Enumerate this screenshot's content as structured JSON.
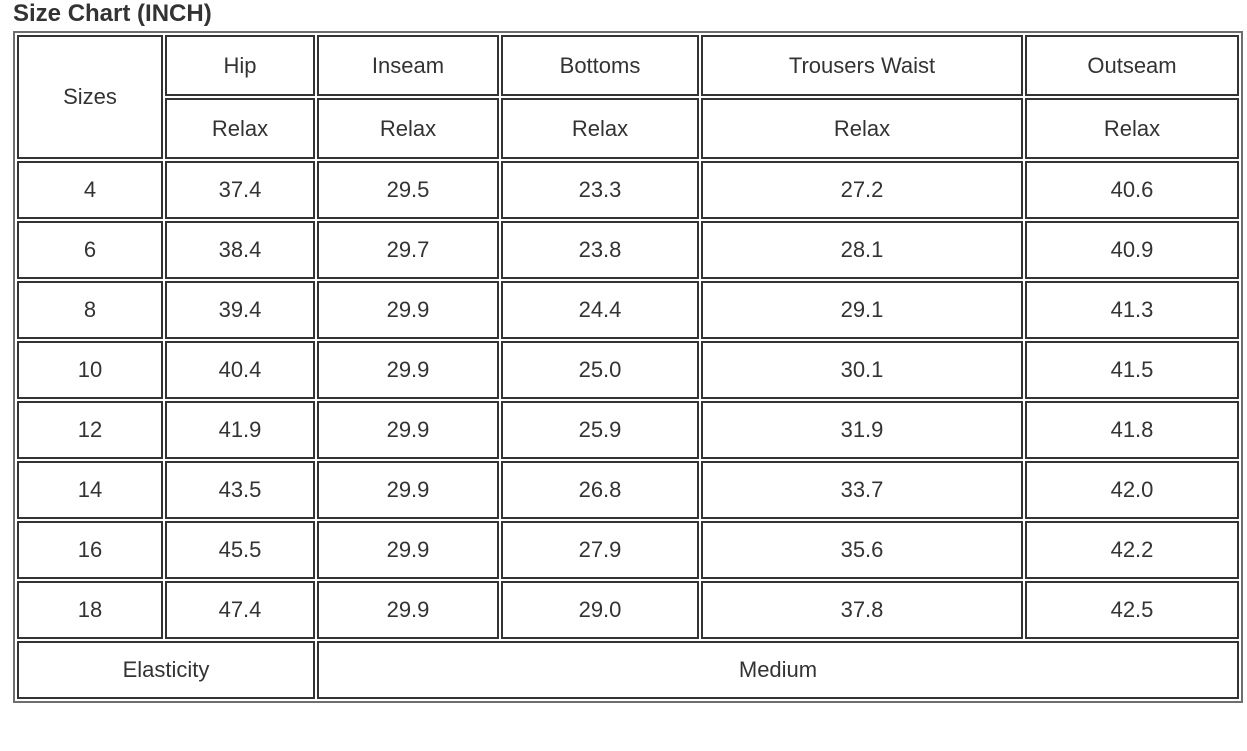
{
  "title": "Size Chart (INCH)",
  "table": {
    "sizes_label": "Sizes",
    "columns": [
      "Hip",
      "Inseam",
      "Bottoms",
      "Trousers Waist",
      "Outseam"
    ],
    "sub_label": "Relax",
    "rows": [
      {
        "size": "4",
        "values": [
          "37.4",
          "29.5",
          "23.3",
          "27.2",
          "40.6"
        ]
      },
      {
        "size": "6",
        "values": [
          "38.4",
          "29.7",
          "23.8",
          "28.1",
          "40.9"
        ]
      },
      {
        "size": "8",
        "values": [
          "39.4",
          "29.9",
          "24.4",
          "29.1",
          "41.3"
        ]
      },
      {
        "size": "10",
        "values": [
          "40.4",
          "29.9",
          "25.0",
          "30.1",
          "41.5"
        ]
      },
      {
        "size": "12",
        "values": [
          "41.9",
          "29.9",
          "25.9",
          "31.9",
          "41.8"
        ]
      },
      {
        "size": "14",
        "values": [
          "43.5",
          "29.9",
          "26.8",
          "33.7",
          "42.0"
        ]
      },
      {
        "size": "16",
        "values": [
          "45.5",
          "29.9",
          "27.9",
          "35.6",
          "42.2"
        ]
      },
      {
        "size": "18",
        "values": [
          "47.4",
          "29.9",
          "29.0",
          "37.8",
          "42.5"
        ]
      }
    ],
    "footer": {
      "label": "Elasticity",
      "value": "Medium"
    }
  }
}
